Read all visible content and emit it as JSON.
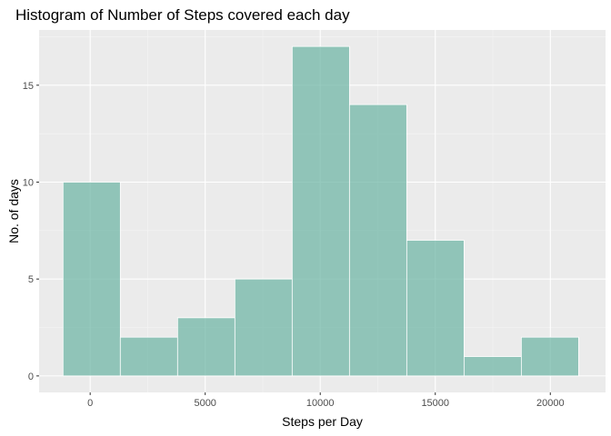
{
  "chart_data": {
    "type": "bar",
    "title": "Histogram of Number of Steps covered each day",
    "xlabel": "Steps per Day",
    "ylabel": "No. of days",
    "x_ticks": [
      0,
      5000,
      10000,
      15000,
      20000
    ],
    "y_ticks": [
      0,
      5,
      10,
      15
    ],
    "xlim": [
      -2220,
      22400
    ],
    "ylim": [
      -0.85,
      17.85
    ],
    "grid": true,
    "legend": "none",
    "bins": [
      {
        "x0": -1180,
        "x1": 1310,
        "count": 10
      },
      {
        "x0": 1310,
        "x1": 3800,
        "count": 2
      },
      {
        "x0": 3800,
        "x1": 6290,
        "count": 3
      },
      {
        "x0": 6290,
        "x1": 8780,
        "count": 5
      },
      {
        "x0": 8780,
        "x1": 11270,
        "count": 17
      },
      {
        "x0": 11270,
        "x1": 13760,
        "count": 14
      },
      {
        "x0": 13760,
        "x1": 16250,
        "count": 7
      },
      {
        "x0": 16250,
        "x1": 18740,
        "count": 1
      },
      {
        "x0": 18740,
        "x1": 21230,
        "count": 2
      }
    ],
    "colors": {
      "bar_fill": "#69b3a2",
      "bar_stroke": "#ffffff",
      "panel": "#ebebeb",
      "grid_major": "#ffffff",
      "grid_minor": "#f5f5f5",
      "tick_text": "#4d4d4d",
      "tick_mark": "#333333"
    }
  }
}
